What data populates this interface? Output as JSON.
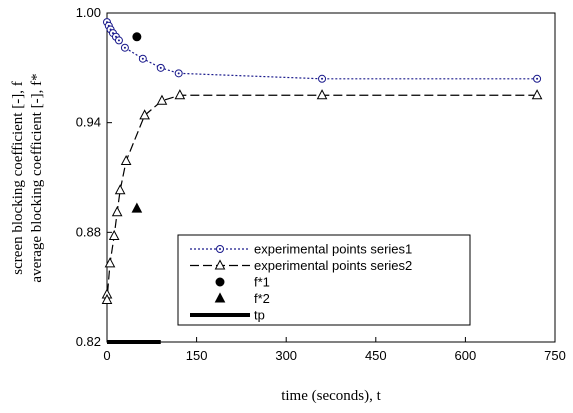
{
  "chart_data": {
    "type": "scatter-line",
    "x_label": "time (seconds), t",
    "y_label": [
      "screen blocking coefficient [-], f",
      "average blocking coefficient [-], f*"
    ],
    "xlim": [
      0,
      750
    ],
    "xticks": [
      0,
      150,
      300,
      450,
      600,
      750
    ],
    "ylim": [
      0.82,
      1.0
    ],
    "yticks": [
      {
        "value": 0.82,
        "label": "0.82"
      },
      {
        "value": 0.88,
        "label": "0.88"
      },
      {
        "value": 0.94,
        "label": "0.94"
      },
      {
        "value": 1.0,
        "label": "1.00"
      }
    ],
    "series": [
      {
        "name": "experimental points series1",
        "color": "#1a1a8c",
        "marker": "open-circle",
        "line": "dotted",
        "x": [
          0,
          3,
          6,
          10,
          15,
          20,
          30,
          60,
          90,
          120,
          360,
          720
        ],
        "values": [
          0.995,
          0.993,
          0.991,
          0.989,
          0.987,
          0.985,
          0.981,
          0.975,
          0.97,
          0.967,
          0.964,
          0.964
        ]
      },
      {
        "name": "experimental points series2",
        "color": "#000000",
        "marker": "open-triangle",
        "line": "dashed",
        "x": [
          0,
          0,
          5,
          12,
          17,
          22,
          32,
          63,
          92,
          122,
          360,
          720
        ],
        "values": [
          0.846,
          0.843,
          0.863,
          0.878,
          0.891,
          0.903,
          0.919,
          0.944,
          0.952,
          0.955,
          0.955,
          0.955
        ]
      },
      {
        "name": "f*1",
        "color": "#000000",
        "marker": "filled-circle",
        "line": "none",
        "x": [
          50
        ],
        "values": [
          0.987
        ]
      },
      {
        "name": "f*2",
        "color": "#000000",
        "marker": "filled-triangle",
        "line": "none",
        "x": [
          50
        ],
        "values": [
          0.893
        ]
      },
      {
        "name": "tp",
        "color": "#000000",
        "marker": "none",
        "line": "thick",
        "x": [
          0,
          90
        ],
        "values": [
          0.82,
          0.82
        ]
      }
    ]
  }
}
